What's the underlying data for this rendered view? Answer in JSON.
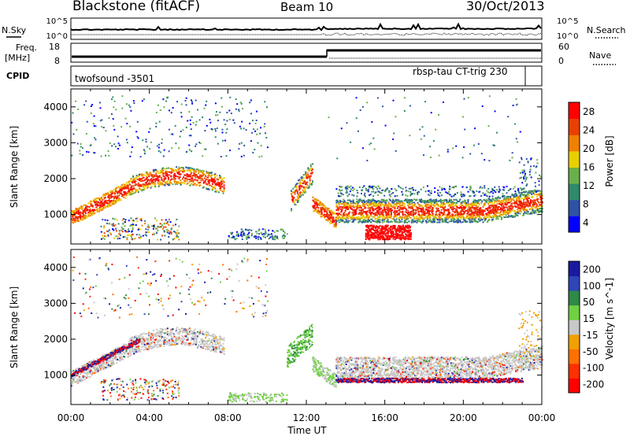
{
  "header": {
    "station": "Blackstone (fitACF)",
    "beam": "Beam 10",
    "date": "30/Oct/2013"
  },
  "strip_labels": {
    "nsky": "N.Sky",
    "nsearch": "N.Search",
    "freq": "Freq.",
    "freq_unit": "[MHz]",
    "nave": "Nave",
    "cpid": "CPID",
    "noise_ticks_left": [
      "10^5",
      "10^0"
    ],
    "noise_ticks_right": [
      "10^5",
      "10^0"
    ],
    "freq_ticks": [
      "18",
      "8"
    ],
    "nave_ticks": [
      "60",
      "0"
    ]
  },
  "cpid": {
    "mode1": "twofsound -3501",
    "mode2": "rbsp-tau CT-trig 230"
  },
  "chart_data": [
    {
      "type": "heatmap",
      "title": "",
      "xlabel": "Time UT",
      "ylabel": "Slant Range [km]",
      "x_ticks": [
        "00:00",
        "04:00",
        "08:00",
        "12:00",
        "16:00",
        "20:00",
        "00:00"
      ],
      "y_ticks": [
        "1000",
        "2000",
        "3000",
        "4000"
      ],
      "xlim": [
        "00:00",
        "24:00"
      ],
      "ylim": [
        180,
        4500
      ],
      "colorbar": {
        "label": "Power [dB]",
        "ticks": [
          "28",
          "24",
          "20",
          "16",
          "12",
          "8",
          "4"
        ],
        "range": [
          0,
          30
        ],
        "colors": [
          "#0000ff",
          "#2f52a8",
          "#2f8a6a",
          "#6ab04a",
          "#e8d000",
          "#f08000",
          "#e84000",
          "#ff0000"
        ]
      }
    },
    {
      "type": "heatmap",
      "title": "",
      "xlabel": "Time UT",
      "ylabel": "Slant Range [km]",
      "x_ticks": [
        "00:00",
        "04:00",
        "08:00",
        "12:00",
        "16:00",
        "20:00",
        "00:00"
      ],
      "y_ticks": [
        "1000",
        "2000",
        "3000",
        "4000"
      ],
      "xlim": [
        "00:00",
        "24:00"
      ],
      "ylim": [
        180,
        4500
      ],
      "colorbar": {
        "label": "Velocity [m s^-1]",
        "ticks": [
          "200",
          "100",
          "50",
          "15",
          "-15",
          "-50",
          "-100",
          "-200"
        ],
        "colors": [
          "#1a1aa0",
          "#2e46b8",
          "#2e8a46",
          "#6fd040",
          "#c8c8c8",
          "#f0a000",
          "#ff7000",
          "#ff3000",
          "#ff0000"
        ]
      }
    }
  ]
}
